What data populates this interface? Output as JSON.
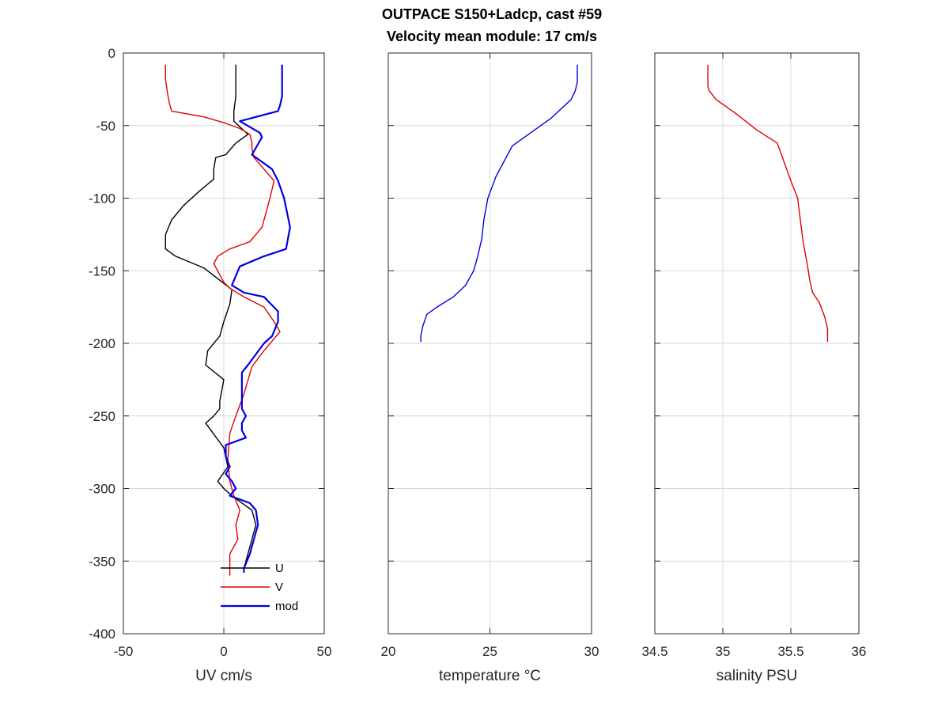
{
  "figure": {
    "title_line1": "OUTPACE S150+Ladcp, cast #59",
    "title_line2": "Velocity mean module:  17 cm/s"
  },
  "colors": {
    "U": "#000000",
    "V": "#e00000",
    "mod": "#0000e6",
    "temperature": "#0000e6",
    "salinity": "#e00000",
    "grid": "#d9d9d9",
    "axis": "#262626"
  },
  "chart_data": [
    {
      "type": "line",
      "xlabel": "UV cm/s",
      "ylabel": "",
      "xlim": [
        -50,
        50
      ],
      "ylim": [
        -400,
        0
      ],
      "xticks": [
        "-50",
        "0",
        "50"
      ],
      "yticks": [
        "0",
        "-50",
        "-100",
        "-150",
        "-200",
        "-250",
        "-300",
        "-350",
        "-400"
      ],
      "grid": true,
      "legend": {
        "placement": "bottom",
        "entries": [
          "U",
          "V",
          "mod"
        ]
      },
      "series": [
        {
          "name": "U",
          "x": [
            6,
            6,
            6,
            5,
            5,
            12,
            6,
            1,
            -4,
            -5,
            -5,
            -6,
            -12,
            -20,
            -26,
            -29,
            -29,
            -24,
            -10,
            4,
            3,
            0,
            -2,
            -8,
            -9,
            0,
            -2,
            -2,
            -5,
            -9,
            0,
            2,
            -3,
            0,
            4,
            14,
            16,
            12,
            10
          ],
          "y": [
            -8,
            -20,
            -30,
            -40,
            -47,
            -56,
            -62,
            -70,
            -72,
            -80,
            -87,
            -88,
            -95,
            -105,
            -115,
            -125,
            -135,
            -140,
            -148,
            -163,
            -173,
            -185,
            -195,
            -205,
            -215,
            -225,
            -240,
            -245,
            -250,
            -255,
            -272,
            -285,
            -295,
            -300,
            -305,
            -315,
            -325,
            -345,
            -355
          ]
        },
        {
          "name": "V",
          "x": [
            -29,
            -29,
            -28,
            -27,
            -26,
            -10,
            0,
            8,
            13,
            14,
            14,
            15,
            20,
            25,
            23,
            19,
            13,
            3,
            -3,
            -5,
            0,
            3,
            10,
            20,
            25,
            28,
            20,
            14,
            10,
            6,
            3,
            2,
            3,
            5,
            8,
            6,
            7,
            3,
            3
          ],
          "y": [
            -8,
            -18,
            -28,
            -35,
            -40,
            -44,
            -48,
            -52,
            -56,
            -62,
            -66,
            -72,
            -80,
            -88,
            -100,
            -120,
            -130,
            -135,
            -140,
            -145,
            -158,
            -162,
            -168,
            -175,
            -185,
            -192,
            -205,
            -216,
            -235,
            -250,
            -262,
            -280,
            -295,
            -305,
            -315,
            -325,
            -335,
            -345,
            -360
          ]
        },
        {
          "name": "mod",
          "x": [
            29,
            29,
            29,
            28,
            27,
            8,
            18,
            19,
            14,
            16,
            19,
            24,
            27,
            30,
            33,
            31,
            20,
            8,
            4,
            10,
            20,
            27,
            27,
            24,
            20,
            12,
            9,
            9,
            9,
            11,
            9,
            9,
            11,
            1,
            1,
            3,
            1,
            4,
            6,
            3,
            13,
            16,
            17,
            16,
            13,
            10,
            10
          ],
          "y": [
            -8,
            -20,
            -30,
            -36,
            -40,
            -47,
            -55,
            -58,
            -70,
            -72,
            -75,
            -80,
            -88,
            -100,
            -120,
            -135,
            -140,
            -147,
            -160,
            -165,
            -168,
            -178,
            -185,
            -195,
            -200,
            -215,
            -220,
            -230,
            -245,
            -250,
            -255,
            -260,
            -265,
            -270,
            -278,
            -285,
            -290,
            -295,
            -300,
            -305,
            -310,
            -315,
            -325,
            -330,
            -345,
            -355,
            -358
          ]
        }
      ]
    },
    {
      "type": "line",
      "xlabel": "temperature °C",
      "ylabel": "",
      "xlim": [
        20,
        30
      ],
      "ylim": [
        -400,
        0
      ],
      "xticks": [
        "20",
        "25",
        "30"
      ],
      "yticks": [],
      "grid": true,
      "series": [
        {
          "name": "",
          "x": [
            29.3,
            29.3,
            29.2,
            29.0,
            28.0,
            27.0,
            26.1,
            25.3,
            24.9,
            24.7,
            24.6,
            24.4,
            24.2,
            23.8,
            23.2,
            22.4,
            21.9,
            21.7,
            21.6,
            21.6
          ],
          "y": [
            -8,
            -20,
            -26,
            -32,
            -45,
            -55,
            -64,
            -85,
            -100,
            -115,
            -128,
            -140,
            -150,
            -160,
            -168,
            -175,
            -180,
            -188,
            -195,
            -199
          ]
        }
      ]
    },
    {
      "type": "line",
      "xlabel": "salinity PSU",
      "ylabel": "",
      "xlim": [
        34.5,
        36
      ],
      "ylim": [
        -400,
        0
      ],
      "xticks": [
        "34.5",
        "35",
        "35.5",
        "36"
      ],
      "yticks": [],
      "grid": true,
      "series": [
        {
          "name": "",
          "x": [
            34.89,
            34.89,
            34.89,
            34.9,
            34.95,
            35.1,
            35.25,
            35.4,
            35.45,
            35.5,
            35.55,
            35.57,
            35.59,
            35.62,
            35.64,
            35.66,
            35.71,
            35.75,
            35.77,
            35.77
          ],
          "y": [
            -8,
            -15,
            -23,
            -26,
            -32,
            -42,
            -53,
            -62,
            -75,
            -88,
            -100,
            -115,
            -130,
            -145,
            -157,
            -165,
            -172,
            -182,
            -190,
            -199
          ]
        }
      ]
    }
  ]
}
